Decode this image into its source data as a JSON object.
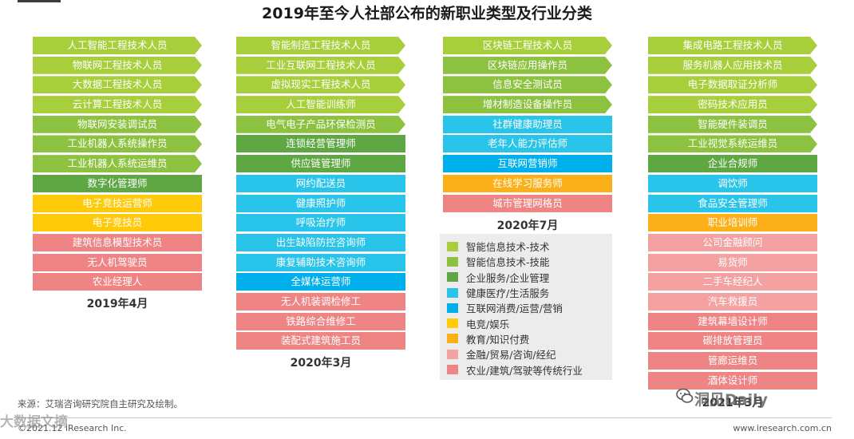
{
  "title": "2019年至今人社部公布的新职业类型及行业分类",
  "colors": {
    "tech_tech": "#a6cf3b",
    "tech_skill": "#8dc241",
    "enterprise": "#5ea743",
    "health": "#29c4e9",
    "internet": "#00b0ec",
    "esports": "#ffca0a",
    "education": "#fbb01a",
    "finance": "#f3a1a1",
    "traditional": "#ee8584"
  },
  "chart_data": {
    "type": "table",
    "columns": [
      {
        "label": "2019年4月",
        "items": [
          {
            "text": "人工智能工程技术人员",
            "cat": "tech_tech"
          },
          {
            "text": "物联网工程技术人员",
            "cat": "tech_tech"
          },
          {
            "text": "大数据工程技术人员",
            "cat": "tech_tech"
          },
          {
            "text": "云计算工程技术人员",
            "cat": "tech_tech"
          },
          {
            "text": "物联网安装调试员",
            "cat": "tech_skill"
          },
          {
            "text": "工业机器人系统操作员",
            "cat": "tech_skill"
          },
          {
            "text": "工业机器人系统运维员",
            "cat": "tech_skill"
          },
          {
            "text": "数字化管理师",
            "cat": "enterprise"
          },
          {
            "text": "电子竞技运营师",
            "cat": "esports"
          },
          {
            "text": "电子竞技员",
            "cat": "esports"
          },
          {
            "text": "建筑信息模型技术员",
            "cat": "traditional"
          },
          {
            "text": "无人机驾驶员",
            "cat": "traditional"
          },
          {
            "text": "农业经理人",
            "cat": "traditional"
          }
        ]
      },
      {
        "label": "2020年3月",
        "items": [
          {
            "text": "智能制造工程技术人员",
            "cat": "tech_tech"
          },
          {
            "text": "工业互联网工程技术人员",
            "cat": "tech_tech"
          },
          {
            "text": "虚拟现实工程技术人员",
            "cat": "tech_tech"
          },
          {
            "text": "人工智能训练师",
            "cat": "tech_tech"
          },
          {
            "text": "电气电子产品环保检测员",
            "cat": "tech_skill"
          },
          {
            "text": "连锁经营管理师",
            "cat": "enterprise"
          },
          {
            "text": "供应链管理师",
            "cat": "enterprise"
          },
          {
            "text": "网约配送员",
            "cat": "health"
          },
          {
            "text": "健康照护师",
            "cat": "health"
          },
          {
            "text": "呼吸治疗师",
            "cat": "health"
          },
          {
            "text": "出生缺陷防控咨询师",
            "cat": "health"
          },
          {
            "text": "康复辅助技术咨询师",
            "cat": "health"
          },
          {
            "text": "全媒体运营师",
            "cat": "internet"
          },
          {
            "text": "无人机装调检修工",
            "cat": "traditional"
          },
          {
            "text": "铁路综合维修工",
            "cat": "traditional"
          },
          {
            "text": "装配式建筑施工员",
            "cat": "traditional"
          }
        ]
      },
      {
        "label": "2020年7月",
        "items": [
          {
            "text": "区块链工程技术人员",
            "cat": "tech_tech"
          },
          {
            "text": "区块链应用操作员",
            "cat": "tech_skill"
          },
          {
            "text": "信息安全测试员",
            "cat": "tech_skill"
          },
          {
            "text": "增材制造设备操作员",
            "cat": "tech_skill"
          },
          {
            "text": "社群健康助理员",
            "cat": "health"
          },
          {
            "text": "老年人能力评估师",
            "cat": "health"
          },
          {
            "text": "互联网营销师",
            "cat": "internet"
          },
          {
            "text": "在线学习服务师",
            "cat": "education"
          },
          {
            "text": "城市管理网格员",
            "cat": "traditional"
          }
        ]
      },
      {
        "label": "2021年3月",
        "items": [
          {
            "text": "集成电路工程技术人员",
            "cat": "tech_tech"
          },
          {
            "text": "服务机器人应用技术员",
            "cat": "tech_tech"
          },
          {
            "text": "电子数据取证分析师",
            "cat": "tech_tech"
          },
          {
            "text": "密码技术应用员",
            "cat": "tech_tech"
          },
          {
            "text": "智能硬件装调员",
            "cat": "tech_skill"
          },
          {
            "text": "工业视觉系统运维员",
            "cat": "tech_skill"
          },
          {
            "text": "企业合规师",
            "cat": "enterprise"
          },
          {
            "text": "调饮师",
            "cat": "health"
          },
          {
            "text": "食品安全管理师",
            "cat": "health"
          },
          {
            "text": "职业培训师",
            "cat": "education"
          },
          {
            "text": "公司金融顾问",
            "cat": "finance"
          },
          {
            "text": "易货师",
            "cat": "finance"
          },
          {
            "text": "二手车经纪人",
            "cat": "finance"
          },
          {
            "text": "汽车救援员",
            "cat": "finance"
          },
          {
            "text": "建筑幕墙设计师",
            "cat": "traditional"
          },
          {
            "text": "碳排放管理员",
            "cat": "traditional"
          },
          {
            "text": "管廊运维员",
            "cat": "traditional"
          },
          {
            "text": "酒体设计师",
            "cat": "traditional"
          }
        ]
      }
    ],
    "legend": [
      {
        "cat": "tech_tech",
        "label": "智能信息技术-技术"
      },
      {
        "cat": "tech_skill",
        "label": "智能信息技术-技能"
      },
      {
        "cat": "enterprise",
        "label": "企业服务/企业管理"
      },
      {
        "cat": "health",
        "label": "健康医疗/生活服务"
      },
      {
        "cat": "internet",
        "label": "互联网消费/运营/营销"
      },
      {
        "cat": "esports",
        "label": "电竞/娱乐"
      },
      {
        "cat": "education",
        "label": "教育/知识付费"
      },
      {
        "cat": "finance",
        "label": "金融/贸易/咨询/经纪"
      },
      {
        "cat": "traditional",
        "label": "农业/建筑/驾驶等传统行业"
      }
    ]
  },
  "footer": {
    "source": "来源：艾瑞咨询研究院自主研究及绘制。",
    "copyright": "©2021.12 iResearch Inc.",
    "site": "www.iresearch.com.cn"
  },
  "watermarks": {
    "left": "大数据文摘",
    "right": "洞见Daily"
  }
}
